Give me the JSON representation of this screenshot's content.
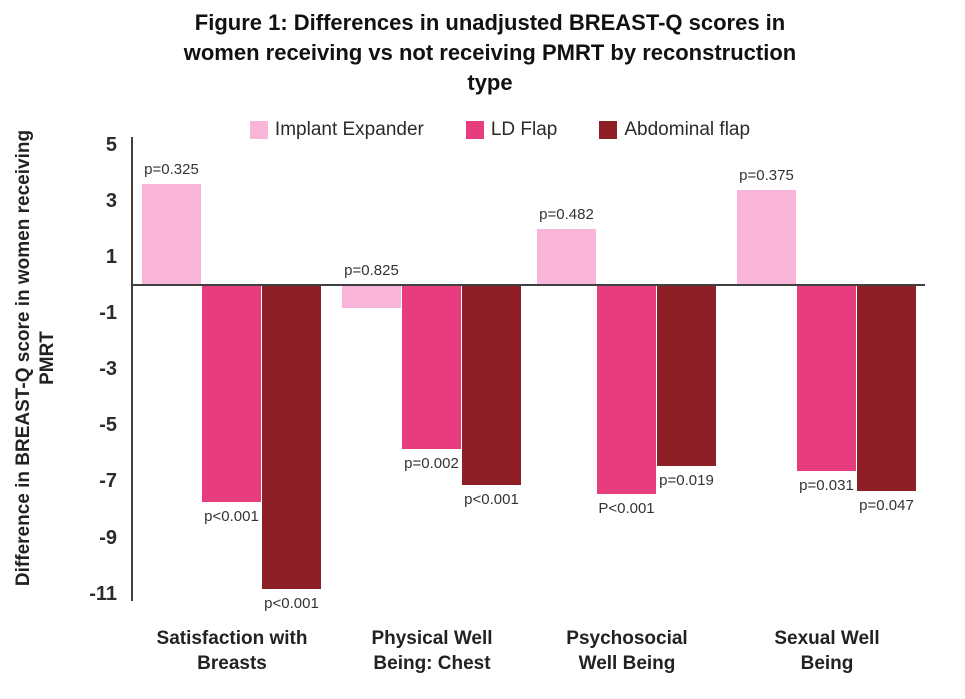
{
  "figure": {
    "title": "Figure 1: Differences in unadjusted BREAST-Q scores in women receiving vs not receiving PMRT by reconstruction type",
    "title_lines": [
      "Figure 1: Differences in unadjusted BREAST-Q scores in",
      "women receiving vs not receiving PMRT by reconstruction",
      "type"
    ],
    "ylabel_lines": [
      "Difference in BREAST-Q score in women receiving",
      "PMRT"
    ]
  },
  "chart_data": {
    "type": "bar",
    "title": "Figure 1: Differences in unadjusted BREAST-Q scores in women receiving vs not receiving PMRT by reconstruction type",
    "xlabel": "",
    "ylabel": "Difference in BREAST-Q score in women receiving PMRT",
    "categories": [
      "Satisfaction with Breasts",
      "Physical Well Being: Chest",
      "Psychosocial Well Being",
      "Sexual Well Being"
    ],
    "category_lines": [
      [
        "Satisfaction with",
        "Breasts"
      ],
      [
        "Physical Well",
        "Being: Chest"
      ],
      [
        "Psychosocial",
        "Well Being"
      ],
      [
        "Sexual Well",
        "Being"
      ]
    ],
    "series": [
      {
        "name": "Implant Expander",
        "color": "#F9B4D9",
        "values": [
          3.6,
          -0.8,
          2.0,
          3.4
        ],
        "p_labels": [
          "p=0.325",
          "p=0.825",
          "p=0.482",
          "p=0.375"
        ],
        "p_label_side": "above"
      },
      {
        "name": "LD Flap",
        "color": "#E73C7D",
        "values": [
          -7.7,
          -5.8,
          -7.4,
          -6.6
        ],
        "p_labels": [
          "p<0.001",
          "p=0.002",
          "P<0.001",
          "p=0.031"
        ],
        "p_label_side": "below"
      },
      {
        "name": "Abdominal flap",
        "color": "#8E1F27",
        "values": [
          -10.8,
          -7.1,
          -6.4,
          -7.3
        ],
        "p_labels": [
          "p<0.001",
          "p<0.001",
          "p=0.019",
          "p=0.047"
        ],
        "p_label_side": "below"
      }
    ],
    "yticks": [
      5,
      3,
      1,
      -1,
      -3,
      -5,
      -7,
      -9,
      -11
    ],
    "ylim": [
      -11,
      5
    ],
    "grid": false,
    "legend_position": "top"
  }
}
